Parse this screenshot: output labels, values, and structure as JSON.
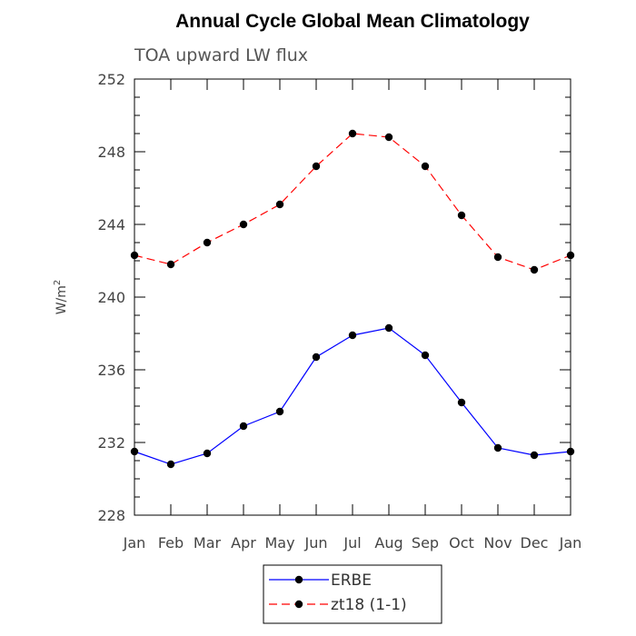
{
  "chart_data": {
    "type": "line",
    "title": "Annual Cycle Global Mean Climatology",
    "subtitle": "TOA upward LW flux",
    "ylabel": "W/m",
    "ylabel_superscript": "2",
    "ylim": [
      228,
      252
    ],
    "yticks": [
      228,
      232,
      236,
      240,
      244,
      248,
      252
    ],
    "grid": false,
    "legend_position": "bottom-center",
    "categories": [
      "Jan",
      "Feb",
      "Mar",
      "Apr",
      "May",
      "Jun",
      "Jul",
      "Aug",
      "Sep",
      "Oct",
      "Nov",
      "Dec",
      "Jan"
    ],
    "series": [
      {
        "name": "ERBE",
        "color": "#0000ff",
        "dash": "solid",
        "values": [
          231.5,
          230.8,
          231.4,
          232.9,
          233.7,
          236.7,
          237.9,
          238.3,
          236.8,
          234.2,
          231.7,
          231.3,
          231.5
        ]
      },
      {
        "name": "zt18 (1-1)",
        "color": "#ff0000",
        "dash": "dashed",
        "values": [
          242.3,
          241.8,
          243.0,
          244.0,
          245.1,
          247.2,
          249.0,
          248.8,
          247.2,
          244.5,
          242.2,
          241.5,
          242.3
        ]
      }
    ]
  }
}
